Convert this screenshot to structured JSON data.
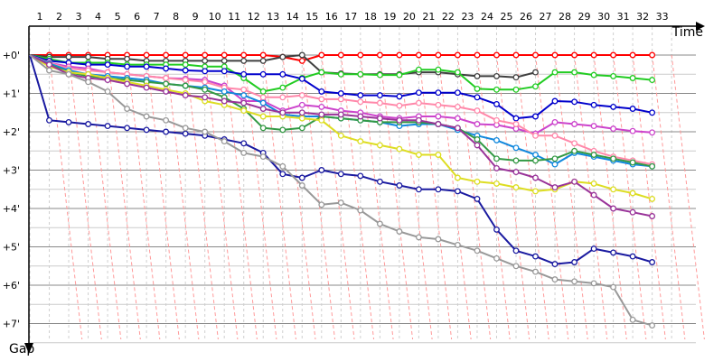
{
  "chart_data": {
    "type": "line",
    "x_axis_label": "Time",
    "y_axis_label": "Gap",
    "x_ticks": [
      "1",
      "2",
      "3",
      "4",
      "5",
      "6",
      "7",
      "8",
      "9",
      "10",
      "11",
      "12",
      "13",
      "14",
      "15",
      "16",
      "17",
      "18",
      "19",
      "20",
      "21",
      "22",
      "23",
      "24",
      "25",
      "26",
      "27",
      "28",
      "29",
      "30",
      "31",
      "32",
      "33"
    ],
    "y_ticks": [
      "+0'",
      "+1'",
      "+2'",
      "+3'",
      "+4'",
      "+5'",
      "+6'",
      "+7'"
    ],
    "x_range": [
      1,
      34
    ],
    "y_range": [
      0,
      7.5
    ],
    "y_unit": "minutes",
    "grid": true,
    "leader_line_color": "#ff9999",
    "series": [
      {
        "color": "#ff0000",
        "values": [
          0,
          0,
          0,
          0,
          0,
          0,
          0,
          0,
          0,
          0,
          0,
          0,
          0,
          0.05,
          0.15,
          0,
          0,
          0,
          0,
          0,
          0,
          0,
          0,
          0,
          0,
          0,
          0,
          0,
          0,
          0,
          0,
          0,
          0
        ]
      },
      {
        "color": "#404040",
        "values": [
          0,
          0.05,
          0.05,
          0.05,
          0.1,
          0.1,
          0.15,
          0.15,
          0.15,
          0.15,
          0.15,
          0.15,
          0.15,
          0.05,
          0,
          0.45,
          0.48,
          0.5,
          0.5,
          0.5,
          0.45,
          0.45,
          0.5,
          0.55,
          0.55,
          0.58,
          0.45,
          null,
          null,
          null,
          null,
          null,
          null
        ]
      },
      {
        "color": "#22cc22",
        "values": [
          0,
          0.1,
          0.2,
          0.2,
          0.2,
          0.25,
          0.25,
          0.25,
          0.25,
          0.3,
          0.3,
          0.6,
          0.95,
          0.85,
          0.6,
          0.45,
          0.5,
          0.5,
          0.52,
          0.52,
          0.38,
          0.38,
          0.45,
          0.88,
          0.9,
          0.9,
          0.82,
          0.45,
          0.45,
          0.52,
          0.55,
          0.6,
          0.65
        ]
      },
      {
        "color": "#0000cc",
        "values": [
          0,
          0.15,
          0.2,
          0.25,
          0.25,
          0.3,
          0.3,
          0.35,
          0.4,
          0.42,
          0.42,
          0.5,
          0.5,
          0.5,
          0.62,
          0.95,
          1.0,
          1.05,
          1.05,
          1.08,
          0.98,
          0.98,
          0.98,
          1.1,
          1.28,
          1.65,
          1.6,
          1.2,
          1.22,
          1.3,
          1.35,
          1.4,
          1.5
        ]
      },
      {
        "color": "#cc44cc",
        "values": [
          0,
          0.2,
          0.3,
          0.35,
          0.45,
          0.5,
          0.55,
          0.6,
          0.62,
          0.65,
          0.8,
          1.2,
          1.2,
          1.45,
          1.3,
          1.35,
          1.45,
          1.5,
          1.6,
          1.65,
          1.6,
          1.6,
          1.65,
          1.8,
          1.82,
          1.92,
          2.05,
          1.75,
          1.8,
          1.85,
          1.92,
          1.98,
          2.02
        ]
      },
      {
        "color": "#ff88aa",
        "values": [
          0,
          0.2,
          0.35,
          0.4,
          0.45,
          0.5,
          0.55,
          0.6,
          0.65,
          0.7,
          0.85,
          0.9,
          1.1,
          1.1,
          1.05,
          1.15,
          1.15,
          1.22,
          1.25,
          1.32,
          1.25,
          1.3,
          1.35,
          1.45,
          1.7,
          1.8,
          2.1,
          2.1,
          2.3,
          2.5,
          2.65,
          2.75,
          2.85
        ]
      },
      {
        "color": "#1188dd",
        "values": [
          0,
          0.22,
          0.4,
          0.5,
          0.55,
          0.6,
          0.65,
          0.75,
          0.8,
          0.85,
          0.95,
          1.05,
          1.25,
          1.55,
          1.6,
          1.6,
          1.65,
          1.7,
          1.75,
          1.85,
          1.8,
          1.8,
          1.95,
          2.1,
          2.22,
          2.42,
          2.6,
          2.85,
          2.55,
          2.65,
          2.75,
          2.85,
          2.9
        ]
      },
      {
        "color": "#339944",
        "values": [
          0,
          0.25,
          0.45,
          0.55,
          0.6,
          0.65,
          0.7,
          0.75,
          0.8,
          0.9,
          1.1,
          1.4,
          1.9,
          1.95,
          1.9,
          1.6,
          1.65,
          1.7,
          1.75,
          1.75,
          1.75,
          1.8,
          1.9,
          2.2,
          2.7,
          2.75,
          2.75,
          2.7,
          2.5,
          2.6,
          2.7,
          2.8,
          2.9
        ]
      },
      {
        "color": "#dddd22",
        "values": [
          0,
          0.3,
          0.45,
          0.5,
          0.6,
          0.7,
          0.8,
          0.9,
          1.0,
          1.2,
          1.3,
          1.45,
          1.6,
          1.6,
          1.65,
          1.7,
          2.1,
          2.25,
          2.35,
          2.45,
          2.6,
          2.6,
          3.2,
          3.3,
          3.35,
          3.45,
          3.55,
          3.5,
          3.3,
          3.35,
          3.5,
          3.6,
          3.75
        ]
      },
      {
        "color": "#993399",
        "values": [
          0,
          0.25,
          0.5,
          0.6,
          0.65,
          0.75,
          0.85,
          0.95,
          1.05,
          1.1,
          1.2,
          1.25,
          1.4,
          1.5,
          1.5,
          1.55,
          1.55,
          1.6,
          1.65,
          1.7,
          1.7,
          1.8,
          1.9,
          2.35,
          2.95,
          3.05,
          3.2,
          3.45,
          3.3,
          3.65,
          4.0,
          4.1,
          4.2
        ]
      },
      {
        "color": "#1a1aa0",
        "values": [
          0,
          1.7,
          1.75,
          1.8,
          1.85,
          1.9,
          1.95,
          2.0,
          2.05,
          2.1,
          2.2,
          2.3,
          2.55,
          3.1,
          3.2,
          3.0,
          3.1,
          3.15,
          3.3,
          3.4,
          3.5,
          3.5,
          3.55,
          3.75,
          4.55,
          5.1,
          5.25,
          5.45,
          5.4,
          5.05,
          5.15,
          5.25,
          5.4
        ]
      },
      {
        "color": "#999999",
        "values": [
          0,
          0.4,
          0.5,
          0.7,
          0.95,
          1.4,
          1.6,
          1.7,
          1.9,
          2.0,
          2.25,
          2.55,
          2.65,
          2.9,
          3.4,
          3.9,
          3.85,
          4.05,
          4.4,
          4.6,
          4.75,
          4.8,
          4.95,
          5.1,
          5.3,
          5.5,
          5.65,
          5.85,
          5.9,
          5.95,
          6.05,
          6.9,
          7.05
        ]
      }
    ]
  }
}
